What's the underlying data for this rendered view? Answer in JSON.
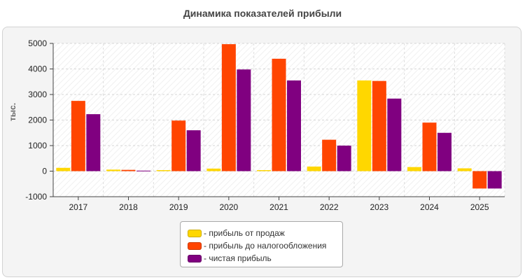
{
  "chart_data": {
    "type": "bar",
    "title": "Динамика показателей прибыли",
    "ylabel": "тыс.",
    "xlabel": "",
    "categories": [
      "2017",
      "2018",
      "2019",
      "2020",
      "2021",
      "2022",
      "2023",
      "2024",
      "2025"
    ],
    "ylim": [
      -1000,
      5000
    ],
    "yticks": [
      -1000,
      0,
      1000,
      2000,
      3000,
      4000,
      5000
    ],
    "grid": true,
    "legend_position": "bottom-center",
    "series": [
      {
        "name": "прибыль от продаж",
        "color": "#ffd700",
        "values": [
          130,
          60,
          40,
          100,
          40,
          180,
          3550,
          160,
          110
        ]
      },
      {
        "name": "прибыль до налогообложения",
        "color": "#ff4500",
        "values": [
          2750,
          50,
          1980,
          4970,
          4400,
          1230,
          3530,
          1900,
          -680
        ]
      },
      {
        "name": "чистая прибыль",
        "color": "#800080",
        "values": [
          2230,
          20,
          1600,
          3980,
          3550,
          1000,
          2840,
          1500,
          -680
        ]
      }
    ]
  }
}
